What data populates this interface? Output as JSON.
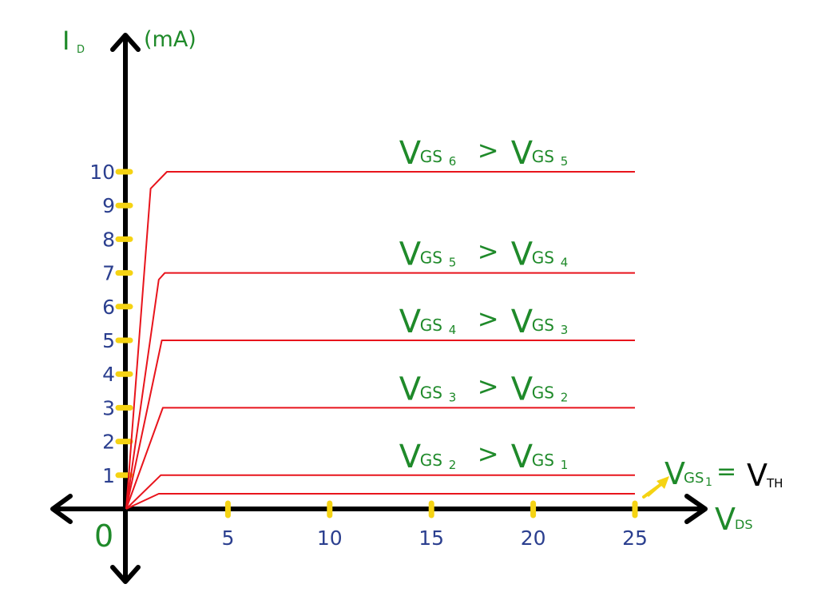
{
  "colors": {
    "axis": "#000000",
    "curve": "#e8141c",
    "tick": "#f5d313",
    "label_green": "#1f8a2a",
    "tick_label": "#2b3f8f",
    "arrow": "#f5d313",
    "vth_text": "#000000"
  },
  "chart_data": {
    "type": "line",
    "title": "",
    "xlabel": {
      "main": "V",
      "sub": "DS"
    },
    "ylabel": {
      "main": "I",
      "sub": "D",
      "unit": "(mA)"
    },
    "origin_label": "0",
    "xlim": [
      0,
      25
    ],
    "ylim": [
      0,
      10
    ],
    "x_ticks": [
      5,
      10,
      15,
      20,
      25
    ],
    "y_ticks": [
      1,
      2,
      3,
      4,
      5,
      6,
      7,
      8,
      9,
      10
    ],
    "x_tick_labels": [
      "5",
      "10",
      "15",
      "20",
      "25"
    ],
    "y_tick_labels": [
      "1",
      "2",
      "3",
      "4",
      "5",
      "6",
      "7",
      "8",
      "9",
      "10"
    ],
    "grid": false,
    "series": [
      {
        "points": [
          [
            0,
            0
          ],
          [
            1.6,
            0.45
          ],
          [
            25,
            0.45
          ]
        ]
      },
      {
        "points": [
          [
            0,
            0
          ],
          [
            1.7,
            1.0
          ],
          [
            25,
            1.0
          ]
        ]
      },
      {
        "points": [
          [
            0,
            0
          ],
          [
            1.8,
            3.0
          ],
          [
            25,
            3.0
          ]
        ]
      },
      {
        "points": [
          [
            0,
            0
          ],
          [
            1.75,
            5.0
          ],
          [
            25,
            5.0
          ]
        ]
      },
      {
        "points": [
          [
            0,
            0
          ],
          [
            1.6,
            6.8
          ],
          [
            1.9,
            7.0
          ],
          [
            25,
            7.0
          ]
        ]
      },
      {
        "points": [
          [
            0,
            0
          ],
          [
            1.2,
            9.5
          ],
          [
            2.0,
            10.0
          ],
          [
            25,
            10.0
          ]
        ]
      }
    ],
    "annotations": [
      {
        "x": 12.0,
        "y": 10.0,
        "left": {
          "main": "V",
          "sub": "GS",
          "index": "6"
        },
        "op": ">",
        "right": {
          "main": "V",
          "sub": "GS",
          "index": "5"
        }
      },
      {
        "x": 12.0,
        "y": 7.0,
        "left": {
          "main": "V",
          "sub": "GS",
          "index": "5"
        },
        "op": ">",
        "right": {
          "main": "V",
          "sub": "GS",
          "index": "4"
        }
      },
      {
        "x": 12.0,
        "y": 5.0,
        "left": {
          "main": "V",
          "sub": "GS",
          "index": "4"
        },
        "op": ">",
        "right": {
          "main": "V",
          "sub": "GS",
          "index": "3"
        }
      },
      {
        "x": 12.0,
        "y": 3.0,
        "left": {
          "main": "V",
          "sub": "GS",
          "index": "3"
        },
        "op": ">",
        "right": {
          "main": "V",
          "sub": "GS",
          "index": "2"
        }
      },
      {
        "x": 12.0,
        "y": 1.0,
        "left": {
          "main": "V",
          "sub": "GS",
          "index": "2"
        },
        "op": ">",
        "right": {
          "main": "V",
          "sub": "GS",
          "index": "1"
        }
      }
    ],
    "threshold_label": {
      "main": "V",
      "sub": "GS",
      "index": "1",
      "eq": "=",
      "rhs_main": "V",
      "rhs_sub": "TH"
    }
  }
}
